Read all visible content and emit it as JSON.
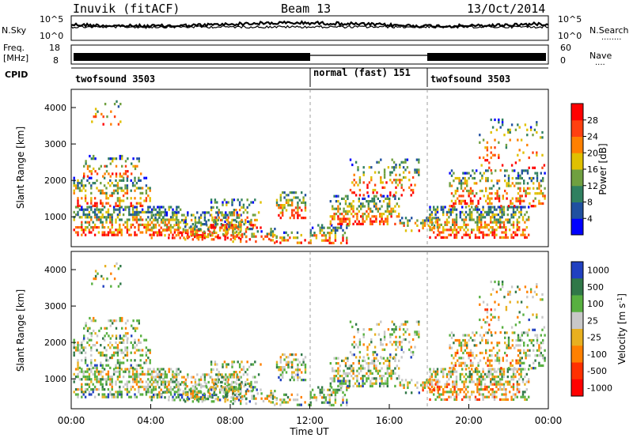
{
  "header": {
    "station": "Inuvik (fitACF)",
    "beam": "Beam 13",
    "date": "13/Oct/2014"
  },
  "top_panels": {
    "noise": {
      "left_label": "N.Sky",
      "right_label": "N.Search",
      "left_ticks": [
        "10^5",
        "10^0"
      ],
      "right_ticks": [
        "10^5",
        "10^0"
      ],
      "right_legend_dots": "........"
    },
    "freq": {
      "left_label_line1": "Freq.",
      "left_label_line2": "[MHz]",
      "left_ticks": [
        "18",
        "8"
      ],
      "right_label": "Nave",
      "right_ticks": [
        "60",
        "0"
      ],
      "right_legend_dots": "...."
    },
    "cpid": {
      "label": "CPID",
      "segments": [
        {
          "start_hour": 0,
          "end_hour": 12,
          "text": "twofsound 3503"
        },
        {
          "start_hour": 12,
          "end_hour": 18,
          "text": "normal (fast) 151"
        },
        {
          "start_hour": 18,
          "end_hour": 24,
          "text": "twofsound 3503"
        }
      ]
    }
  },
  "chart_data": [
    {
      "type": "heatmap",
      "title": "",
      "ylabel": "Slant Range [km]",
      "xlabel": "",
      "ylim": [
        180,
        4500
      ],
      "xlim": [
        0,
        24
      ],
      "yticks": [
        "1000",
        "2000",
        "3000",
        "4000"
      ],
      "ytick_values": [
        1000,
        2000,
        3000,
        4000
      ],
      "colorbar": {
        "label": "Power [dB]",
        "ticks": [
          "4",
          "8",
          "12",
          "16",
          "20",
          "24",
          "28"
        ],
        "range": [
          0,
          32
        ],
        "colors": [
          "#0000ff",
          "#2050a0",
          "#308060",
          "#70a040",
          "#e0c000",
          "#ff8000",
          "#ff4010",
          "#ff0000"
        ]
      }
    },
    {
      "type": "heatmap",
      "title": "",
      "ylabel": "Slant Range [km]",
      "xlabel": "Time UT",
      "ylim": [
        180,
        4500
      ],
      "xlim": [
        0,
        24
      ],
      "yticks": [
        "1000",
        "2000",
        "3000",
        "4000"
      ],
      "ytick_values": [
        1000,
        2000,
        3000,
        4000
      ],
      "xticks": [
        "00:00",
        "04:00",
        "08:00",
        "12:00",
        "16:00",
        "20:00",
        "00:00"
      ],
      "xtick_hours": [
        0,
        4,
        8,
        12,
        16,
        20,
        24
      ],
      "colorbar": {
        "label": "Velocity [m s",
        "label_sup": "-1",
        "label_end": "]",
        "ticks": [
          "1000",
          "500",
          "100",
          "25",
          "-25",
          "-100",
          "-500",
          "-1000"
        ],
        "colors": [
          "#2040c0",
          "#307848",
          "#58b040",
          "#c8c8c8",
          "#e8b020",
          "#ff8000",
          "#ff3000",
          "#ff0000"
        ]
      }
    }
  ]
}
